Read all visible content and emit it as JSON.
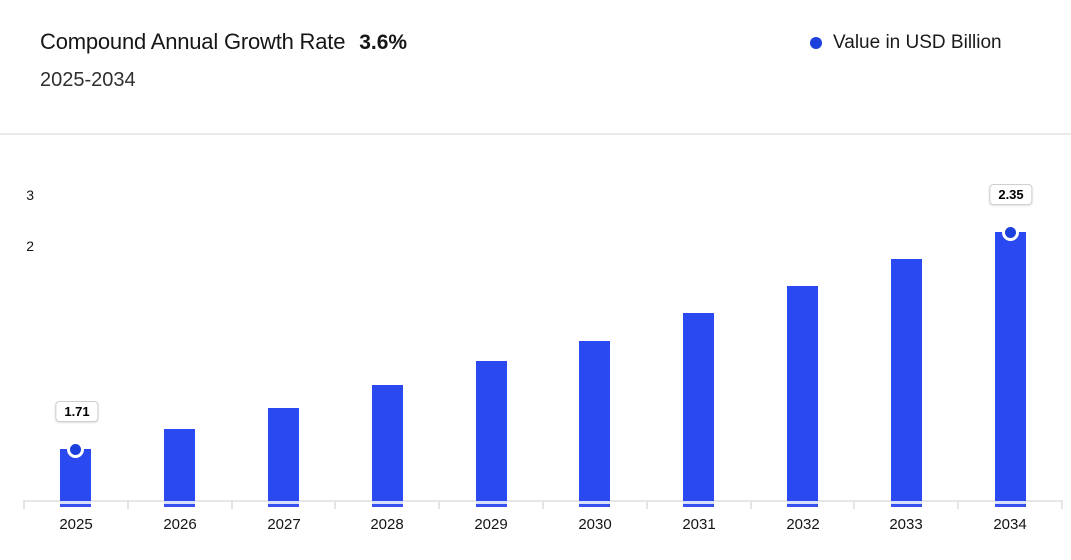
{
  "header": {
    "title": "Compound Annual Growth Rate",
    "cagr_value": "3.6%",
    "subtitle": "2025-2034"
  },
  "legend": {
    "label": "Value in USD Billion"
  },
  "colors": {
    "bar": "#2B49F0",
    "bar_gap": "#D9DFFC",
    "bar_foot": "#3551F1",
    "marker": "#1C40DC",
    "axis": "#E5E5E5",
    "tooltip_border": "#CFCFCF"
  },
  "chart_data": {
    "type": "bar",
    "title": "Compound Annual Growth Rate 3.6%",
    "subtitle": "2025-2034",
    "series_name": "Value in USD Billion",
    "unit": "USD Billion",
    "cagr": "3.6%",
    "categories": [
      "2025",
      "2026",
      "2027",
      "2028",
      "2029",
      "2030",
      "2031",
      "2032",
      "2033",
      "2034"
    ],
    "values": [
      1.71,
      1.77,
      1.83,
      1.9,
      1.97,
      2.03,
      2.11,
      2.19,
      2.27,
      2.35
    ],
    "visible_value_labels": [
      {
        "category": "2025",
        "label": "1.71"
      },
      {
        "category": "2034",
        "label": "2.35"
      }
    ],
    "y_axis_ticks": [
      "3",
      "2"
    ],
    "grid": false,
    "legend_position": "top-right"
  }
}
